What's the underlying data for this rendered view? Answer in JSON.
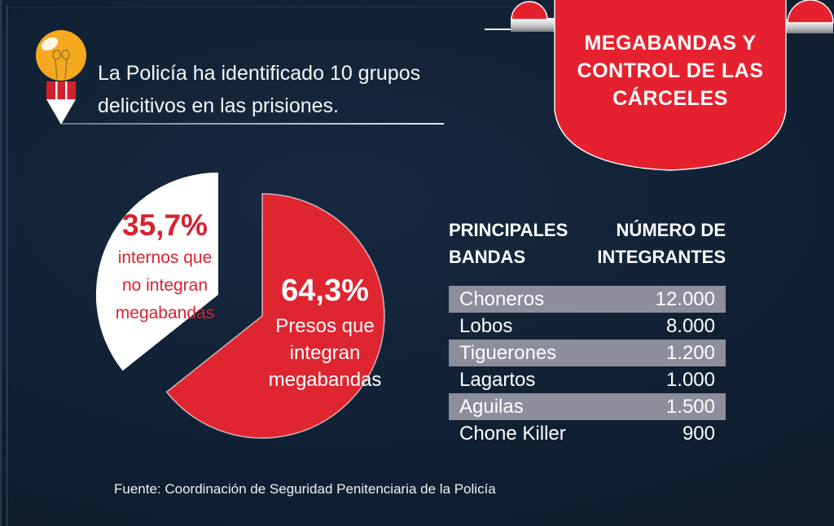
{
  "colors": {
    "accent_red": "#e6212f",
    "pie_red": "#de2530",
    "pie_label_red": "#d7232f",
    "table_stripe": "#8d8d9c",
    "background_dark": "#0a1423",
    "background_light": "#17293f",
    "bulb_yellow": "#f6a91e",
    "text_light": "#ffffff"
  },
  "intro": {
    "lines": [
      "La Policía ha identificado 10 grupos",
      "delicitivos en las prisiones."
    ]
  },
  "ribbon": {
    "title_lines": [
      "MEGABANDAS Y",
      "CONTROL DE LAS",
      "CÁRCELES"
    ]
  },
  "chart_data": [
    {
      "type": "pie",
      "title": "",
      "legend": false,
      "slices": [
        {
          "name": "presos-que-integran-megabandas",
          "value": 64.3,
          "pct_label": "64,3%",
          "label_lines": [
            "Presos que",
            "integran",
            "megabandas"
          ],
          "color": "#de2530",
          "text_color": "#ffffff",
          "exploded": false
        },
        {
          "name": "internos-que-no-integran-megabandas",
          "value": 35.7,
          "pct_label": "35,7%",
          "label_lines": [
            "internos que",
            "no integran",
            "megabandas"
          ],
          "color": "#ffffff",
          "text_color": "#d7232f",
          "exploded": true
        }
      ]
    },
    {
      "type": "table",
      "header_left_lines": [
        "PRINCIPALES",
        "BANDAS"
      ],
      "header_right_lines": [
        "NÚMERO DE",
        "INTEGRANTES"
      ],
      "rows": [
        {
          "name": "Choneros",
          "value": "12.000"
        },
        {
          "name": "Lobos",
          "value": "8.000"
        },
        {
          "name": "Tiguerones",
          "value": "1.200"
        },
        {
          "name": "Lagartos",
          "value": "1.000"
        },
        {
          "name": "Aguilas",
          "value": "1.500"
        },
        {
          "name": "Chone Killer",
          "value": "900"
        }
      ]
    }
  ],
  "source": {
    "text": "Fuente: Coordinación de Seguridad Penitenciaria de la Policía"
  }
}
